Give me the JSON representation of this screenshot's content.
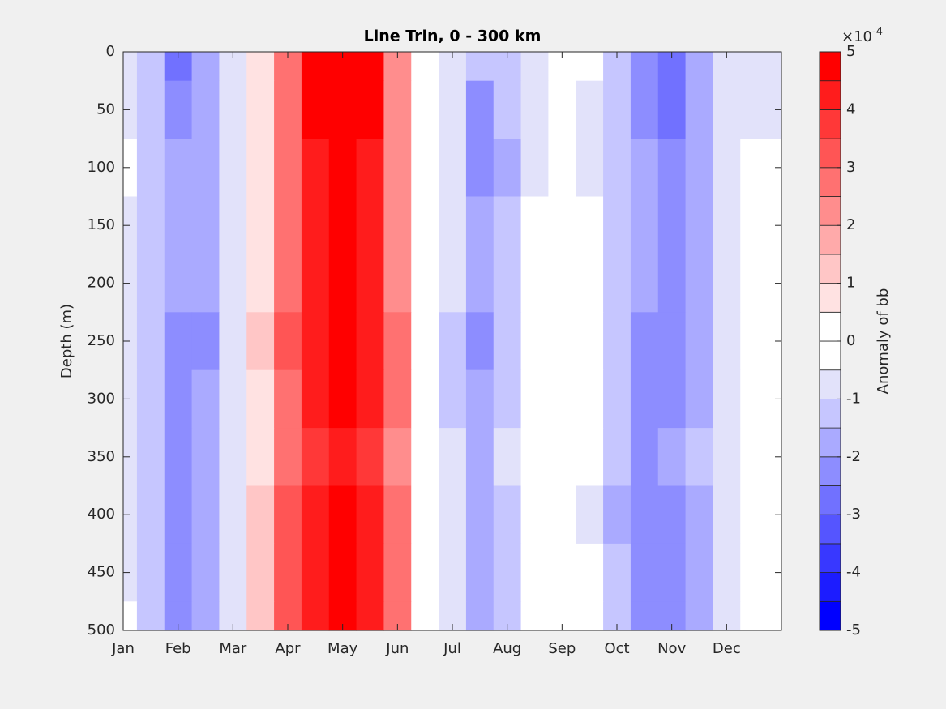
{
  "chart_data": {
    "type": "contour",
    "title": "Line Trin, 0 - 300 km",
    "y_label": "Depth (m)",
    "colorbar_label": "Anomaly of bb",
    "colorbar_multiplier": "×10",
    "colorbar_exponent": "-4",
    "x": [
      0,
      0.5,
      1,
      1.5,
      2,
      2.5,
      3,
      3.5,
      4,
      4.5,
      5,
      5.5,
      6,
      6.5,
      7,
      7.5,
      8,
      8.5,
      9,
      9.5,
      10,
      10.5,
      11,
      11.5,
      12
    ],
    "y": [
      0,
      50,
      100,
      150,
      200,
      250,
      300,
      350,
      400,
      450,
      500
    ],
    "z": [
      [
        -0.8,
        -1.4,
        -2.6,
        -1.9,
        -1.0,
        0.6,
        2.8,
        4.6,
        4.8,
        4.6,
        2.4,
        0.2,
        -0.6,
        -1.5,
        -1.2,
        -0.6,
        0.2,
        -0.5,
        -1.2,
        -2.2,
        -2.8,
        -1.8,
        -0.9,
        -0.6,
        -0.6
      ],
      [
        -0.9,
        -1.4,
        -2.4,
        -1.9,
        -1.0,
        0.7,
        2.8,
        4.6,
        4.8,
        4.6,
        2.4,
        0.2,
        -1.0,
        -2.2,
        -1.5,
        -0.6,
        0.0,
        -0.6,
        -1.3,
        -2.2,
        -2.6,
        -1.8,
        -0.9,
        -0.6,
        -0.6
      ],
      [
        -0.5,
        -1.2,
        -2.0,
        -1.8,
        -1.0,
        0.8,
        2.6,
        4.2,
        4.7,
        4.2,
        2.4,
        0.3,
        -1.0,
        -2.2,
        -1.6,
        -0.6,
        0.0,
        -0.6,
        -1.2,
        -2.0,
        -2.2,
        -1.6,
        -0.8,
        -0.3,
        -0.2
      ],
      [
        -0.6,
        -1.2,
        -2.0,
        -1.8,
        -1.0,
        0.8,
        2.6,
        4.2,
        4.6,
        4.2,
        2.4,
        0.3,
        -1.0,
        -1.8,
        -1.2,
        -0.3,
        0.2,
        -0.3,
        -1.2,
        -2.0,
        -2.2,
        -1.6,
        -0.8,
        -0.3,
        -0.2
      ],
      [
        -0.6,
        -1.2,
        -2.0,
        -1.9,
        -1.0,
        0.8,
        2.6,
        4.2,
        4.7,
        4.2,
        2.4,
        0.3,
        -1.0,
        -2.0,
        -1.3,
        -0.3,
        0.2,
        -0.3,
        -1.2,
        -2.0,
        -2.2,
        -1.6,
        -0.8,
        -0.3,
        -0.3
      ],
      [
        -0.8,
        -1.5,
        -2.4,
        -2.2,
        -1.0,
        1.0,
        3.0,
        4.2,
        4.6,
        4.2,
        2.8,
        0.4,
        -1.3,
        -2.4,
        -1.5,
        -0.5,
        0.0,
        -0.5,
        -1.5,
        -2.2,
        -2.4,
        -1.8,
        -0.9,
        -0.4,
        -0.4
      ],
      [
        -0.8,
        -1.5,
        -2.2,
        -2.0,
        -1.0,
        0.8,
        2.8,
        4.2,
        4.6,
        4.2,
        2.6,
        0.3,
        -1.2,
        -1.8,
        -1.2,
        -0.4,
        0.1,
        -0.5,
        -1.5,
        -2.4,
        -2.4,
        -1.6,
        -0.8,
        -0.3,
        -0.3
      ],
      [
        -0.6,
        -1.4,
        -2.2,
        -1.8,
        -1.0,
        0.8,
        2.6,
        3.8,
        4.2,
        3.8,
        2.4,
        0.3,
        -0.8,
        -1.6,
        -1.0,
        -0.3,
        0.1,
        -0.4,
        -1.4,
        -2.2,
        -2.0,
        -1.5,
        -0.7,
        -0.3,
        -0.3
      ],
      [
        -0.8,
        -1.5,
        -2.2,
        -2.0,
        -1.0,
        1.0,
        3.0,
        4.2,
        4.6,
        4.2,
        2.8,
        0.4,
        -1.0,
        -1.8,
        -1.2,
        -0.4,
        0.0,
        -0.6,
        -1.6,
        -2.2,
        -2.4,
        -1.8,
        -0.8,
        -0.3,
        -0.3
      ],
      [
        -0.6,
        -1.5,
        -2.2,
        -1.8,
        -0.9,
        1.0,
        3.0,
        4.2,
        4.6,
        4.2,
        2.6,
        0.3,
        -0.8,
        -1.6,
        -1.2,
        -0.3,
        0.0,
        -0.5,
        -1.5,
        -2.2,
        -2.4,
        -1.8,
        -0.8,
        -0.3,
        -0.3
      ],
      [
        -0.5,
        -1.4,
        -2.2,
        -1.8,
        -0.9,
        1.0,
        3.0,
        4.2,
        4.6,
        4.2,
        2.6,
        0.3,
        -0.8,
        -1.6,
        -1.2,
        -0.3,
        0.0,
        -0.5,
        -1.5,
        -2.2,
        -2.4,
        -1.8,
        -0.8,
        -0.3,
        -0.3
      ]
    ],
    "xlim": [
      0,
      12
    ],
    "xticks": [
      {
        "value": 0,
        "label": "Jan"
      },
      {
        "value": 1,
        "label": "Feb"
      },
      {
        "value": 2,
        "label": "Mar"
      },
      {
        "value": 3,
        "label": "Apr"
      },
      {
        "value": 4,
        "label": "May"
      },
      {
        "value": 5,
        "label": "Jun"
      },
      {
        "value": 6,
        "label": "Jul"
      },
      {
        "value": 7,
        "label": "Aug"
      },
      {
        "value": 8,
        "label": "Sep"
      },
      {
        "value": 9,
        "label": "Oct"
      },
      {
        "value": 10,
        "label": "Nov"
      },
      {
        "value": 11,
        "label": "Dec"
      }
    ],
    "ylim": [
      0,
      500
    ],
    "yticks": [
      0,
      50,
      100,
      150,
      200,
      250,
      300,
      350,
      400,
      450,
      500
    ],
    "y_reversed": true,
    "clim": [
      -5,
      5
    ],
    "cticks": [
      -5,
      -4,
      -3,
      -2,
      -1,
      0,
      1,
      2,
      3,
      4,
      5
    ],
    "colors": [
      "#0000ff",
      "#1c1cff",
      "#3838ff",
      "#5555ff",
      "#7171ff",
      "#8d8dff",
      "#aaaaff",
      "#c6c6ff",
      "#e2e2fa",
      "#ffffff",
      "#ffffff",
      "#ffe2e2",
      "#ffc6c6",
      "#ffaaaa",
      "#ff8d8d",
      "#ff7171",
      "#ff5555",
      "#ff3838",
      "#ff1c1c",
      "#ff0000"
    ]
  }
}
